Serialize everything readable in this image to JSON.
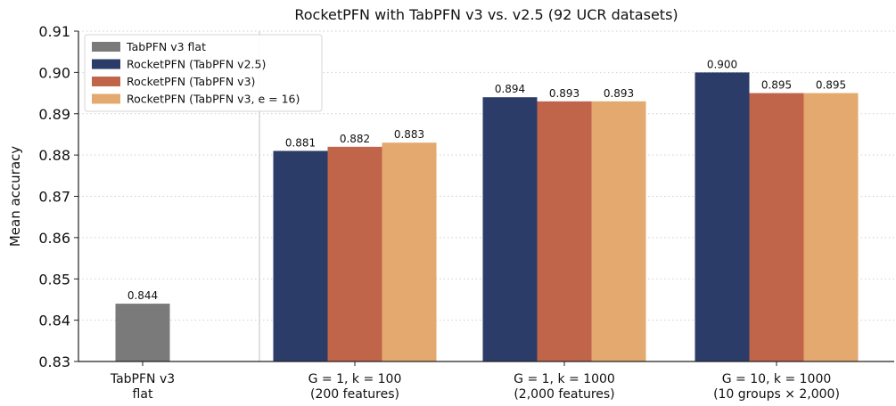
{
  "chart_data": {
    "type": "bar",
    "title": "RocketPFN with TabPFN v3 vs. v2.5 (92 UCR datasets)",
    "xlabel": "",
    "ylabel": "Mean accuracy",
    "ylim": [
      0.83,
      0.91
    ],
    "yticks": [
      "0.83",
      "0.84",
      "0.85",
      "0.86",
      "0.87",
      "0.88",
      "0.89",
      "0.90",
      "0.91"
    ],
    "grid": "horizontal dotted",
    "legend_position": "top-left",
    "groups": [
      {
        "label_lines": [
          "TabPFN v3",
          "flat"
        ],
        "bars": [
          {
            "series": "TabPFN v3 flat",
            "value": 0.844,
            "label": "0.844"
          }
        ]
      },
      {
        "label_lines": [
          "G = 1,  k = 100",
          "(200 features)"
        ],
        "bars": [
          {
            "series": "RocketPFN (TabPFN v2.5)",
            "value": 0.881,
            "label": "0.881"
          },
          {
            "series": "RocketPFN (TabPFN v3)",
            "value": 0.882,
            "label": "0.882"
          },
          {
            "series": "RocketPFN (TabPFN v3, e = 16)",
            "value": 0.883,
            "label": "0.883"
          }
        ]
      },
      {
        "label_lines": [
          "G = 1,  k = 1000",
          "(2,000 features)"
        ],
        "bars": [
          {
            "series": "RocketPFN (TabPFN v2.5)",
            "value": 0.894,
            "label": "0.894"
          },
          {
            "series": "RocketPFN (TabPFN v3)",
            "value": 0.893,
            "label": "0.893"
          },
          {
            "series": "RocketPFN (TabPFN v3, e = 16)",
            "value": 0.893,
            "label": "0.893"
          }
        ]
      },
      {
        "label_lines": [
          "G = 10,  k = 1000",
          "(10 groups × 2,000)"
        ],
        "bars": [
          {
            "series": "RocketPFN (TabPFN v2.5)",
            "value": 0.9,
            "label": "0.900"
          },
          {
            "series": "RocketPFN (TabPFN v3)",
            "value": 0.895,
            "label": "0.895"
          },
          {
            "series": "RocketPFN (TabPFN v3, e = 16)",
            "value": 0.895,
            "label": "0.895"
          }
        ]
      }
    ],
    "series": [
      {
        "name": "TabPFN v3 flat",
        "color": "#7a7a7a"
      },
      {
        "name": "RocketPFN (TabPFN v2.5)",
        "color": "#2c3c69"
      },
      {
        "name": "RocketPFN (TabPFN v3)",
        "color": "#c0654a"
      },
      {
        "name": "RocketPFN (TabPFN v3, e = 16)",
        "color": "#e3a96e"
      }
    ],
    "separator": "vertical line between flat baseline and grouped bars"
  }
}
